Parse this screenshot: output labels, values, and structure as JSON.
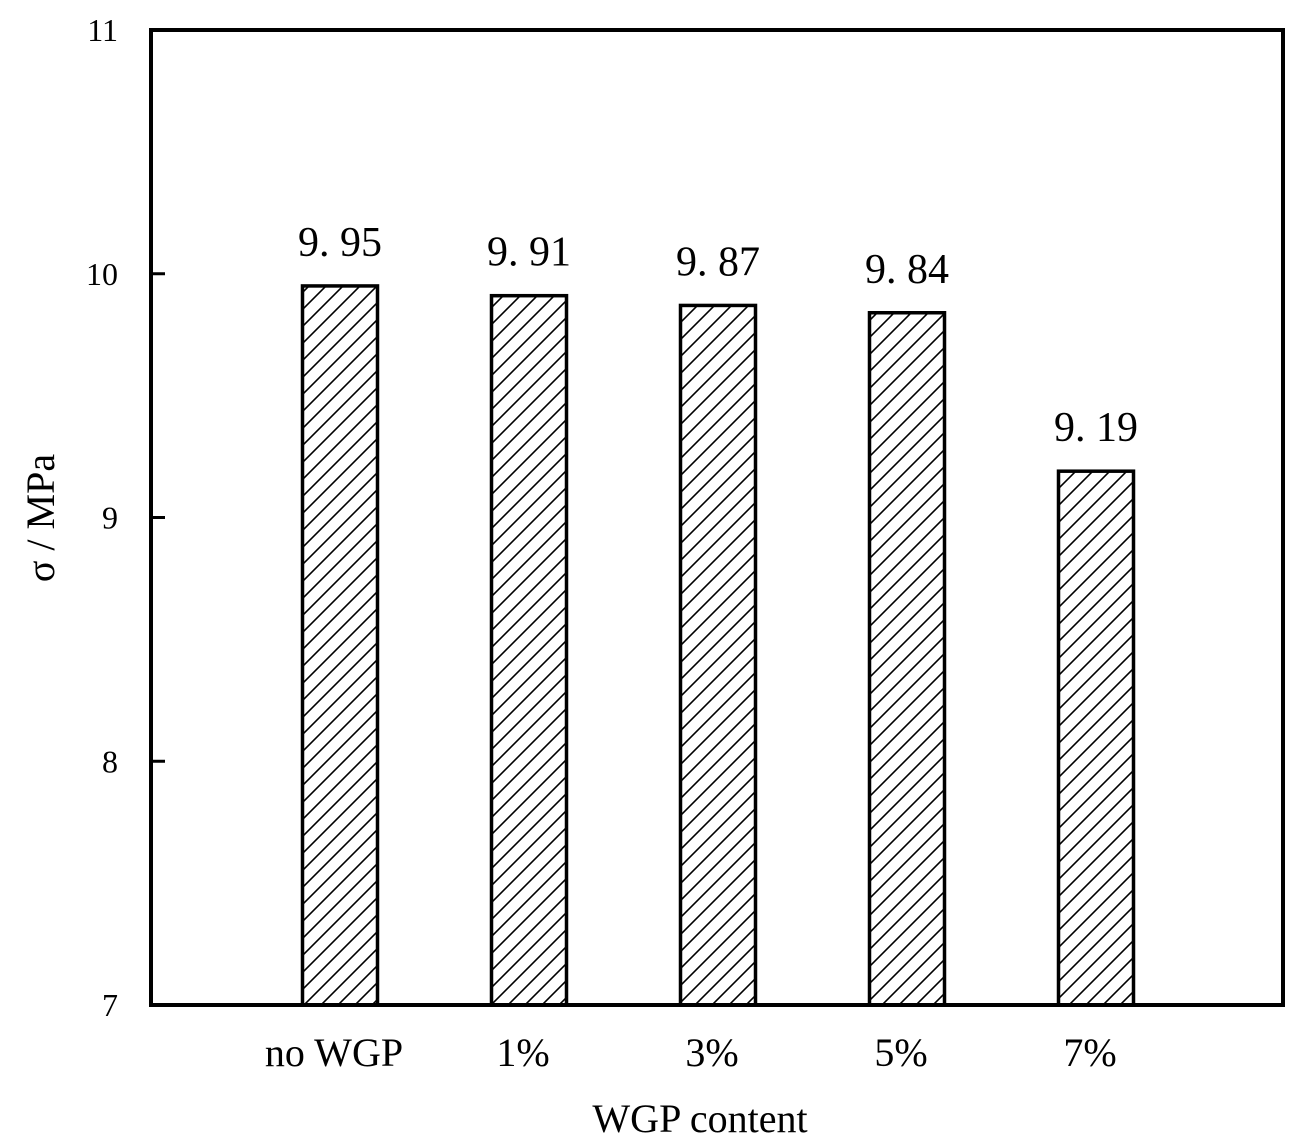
{
  "chart_data": {
    "type": "bar",
    "title": "",
    "xlabel": "WGP content",
    "ylabel": "σ / MPa",
    "categories": [
      "no WGP",
      "1%",
      "3%",
      "5%",
      "7%"
    ],
    "values": [
      9.95,
      9.91,
      9.87,
      9.84,
      9.19
    ],
    "value_labels": [
      "9. 95",
      "9. 91",
      "9. 87",
      "9. 84",
      "9. 19"
    ],
    "ylim": [
      7,
      11
    ],
    "yticks": [
      7,
      8,
      9,
      10,
      11
    ],
    "ytick_labels": [
      "7",
      "8",
      "9",
      "10",
      "11"
    ],
    "grid": false,
    "legend": "none",
    "bar_fill": "hatched-diagonal",
    "colors": {
      "bar_edge": "#000000",
      "hatch": "#000000",
      "background": "#ffffff"
    }
  }
}
